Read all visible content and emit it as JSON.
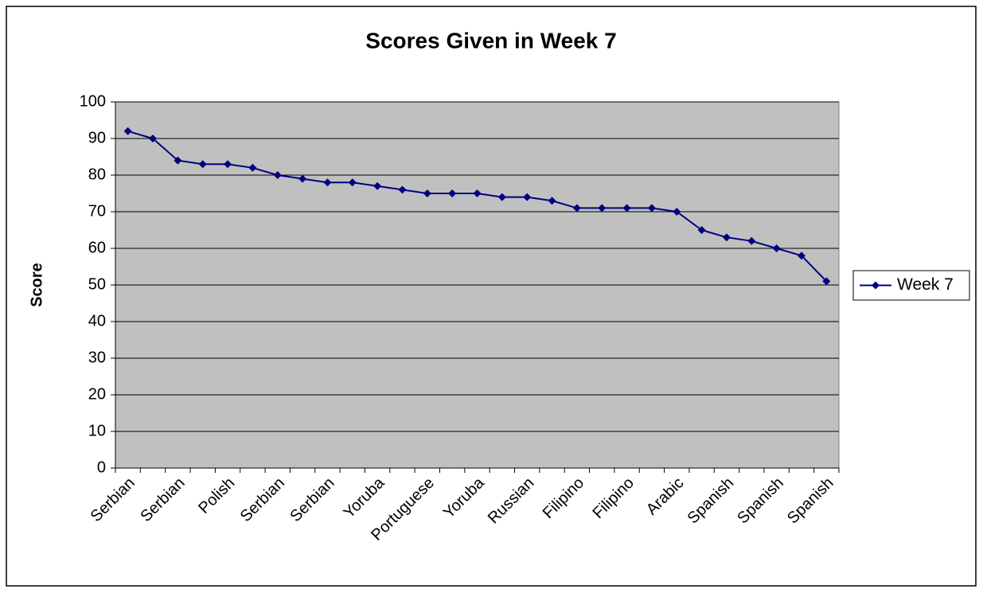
{
  "chart_data": {
    "type": "line",
    "title": "Scores Given in Week 7",
    "y_label": "Score",
    "categories": [
      "Serbian",
      null,
      "Serbian",
      null,
      "Polish",
      null,
      "Serbian",
      null,
      "Serbian",
      null,
      "Yoruba",
      null,
      "Portuguese",
      null,
      "Yoruba",
      null,
      "Russian",
      null,
      "Filipino",
      null,
      "Filipino",
      null,
      "Arabic",
      null,
      "Spanish",
      null,
      "Spanish",
      null,
      "Spanish"
    ],
    "series": [
      {
        "name": "Week 7",
        "color": "#000080",
        "values": [
          92,
          90,
          84,
          83,
          83,
          82,
          80,
          79,
          78,
          78,
          77,
          76,
          75,
          75,
          75,
          74,
          74,
          73,
          71,
          71,
          71,
          71,
          70,
          65,
          63,
          62,
          60,
          58,
          51
        ]
      }
    ],
    "ylim": [
      0,
      100
    ],
    "yticks": [
      0,
      10,
      20,
      30,
      40,
      50,
      60,
      70,
      80,
      90,
      100
    ],
    "grid": true,
    "legend": "right",
    "plot_background": "#c0c0c0"
  }
}
